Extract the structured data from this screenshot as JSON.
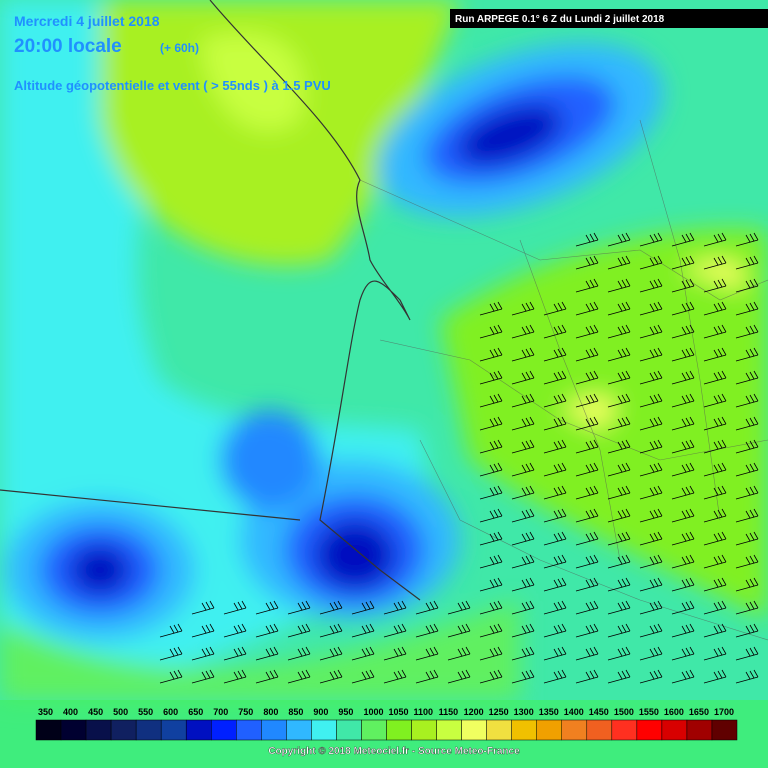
{
  "header": {
    "date": "Mercredi 4 juillet 2018",
    "time": "20:00 locale",
    "lead": "(+ 60h)",
    "subtitle": "Altitude géopotentielle et vent ( > 55nds ) à 1.5 PVU",
    "run": "Run ARPEGE 0.1° 6 Z du Lundi 2 juillet 2018"
  },
  "legend": {
    "values": [
      350,
      400,
      450,
      500,
      550,
      600,
      650,
      700,
      750,
      800,
      850,
      900,
      950,
      1000,
      1050,
      1100,
      1150,
      1200,
      1250,
      1300,
      1350,
      1400,
      1450,
      1500,
      1550,
      1600,
      1650,
      1700
    ],
    "colors": [
      "#000018",
      "#000030",
      "#08104a",
      "#102060",
      "#103080",
      "#1040a0",
      "#0010c0",
      "#0020ff",
      "#2060ff",
      "#2088ff",
      "#30b8ff",
      "#40f0f0",
      "#40e8a8",
      "#60f060",
      "#80f020",
      "#a8f020",
      "#c8ff40",
      "#f0ff60",
      "#f0e040",
      "#f0c000",
      "#f0a000",
      "#f08020",
      "#f06020",
      "#ff3020",
      "#ff0000",
      "#d80000",
      "#a00000",
      "#600000"
    ]
  },
  "footer": {
    "copyright": "Copyright © 2018 Meteociel.fr - Source Meteo-France"
  }
}
